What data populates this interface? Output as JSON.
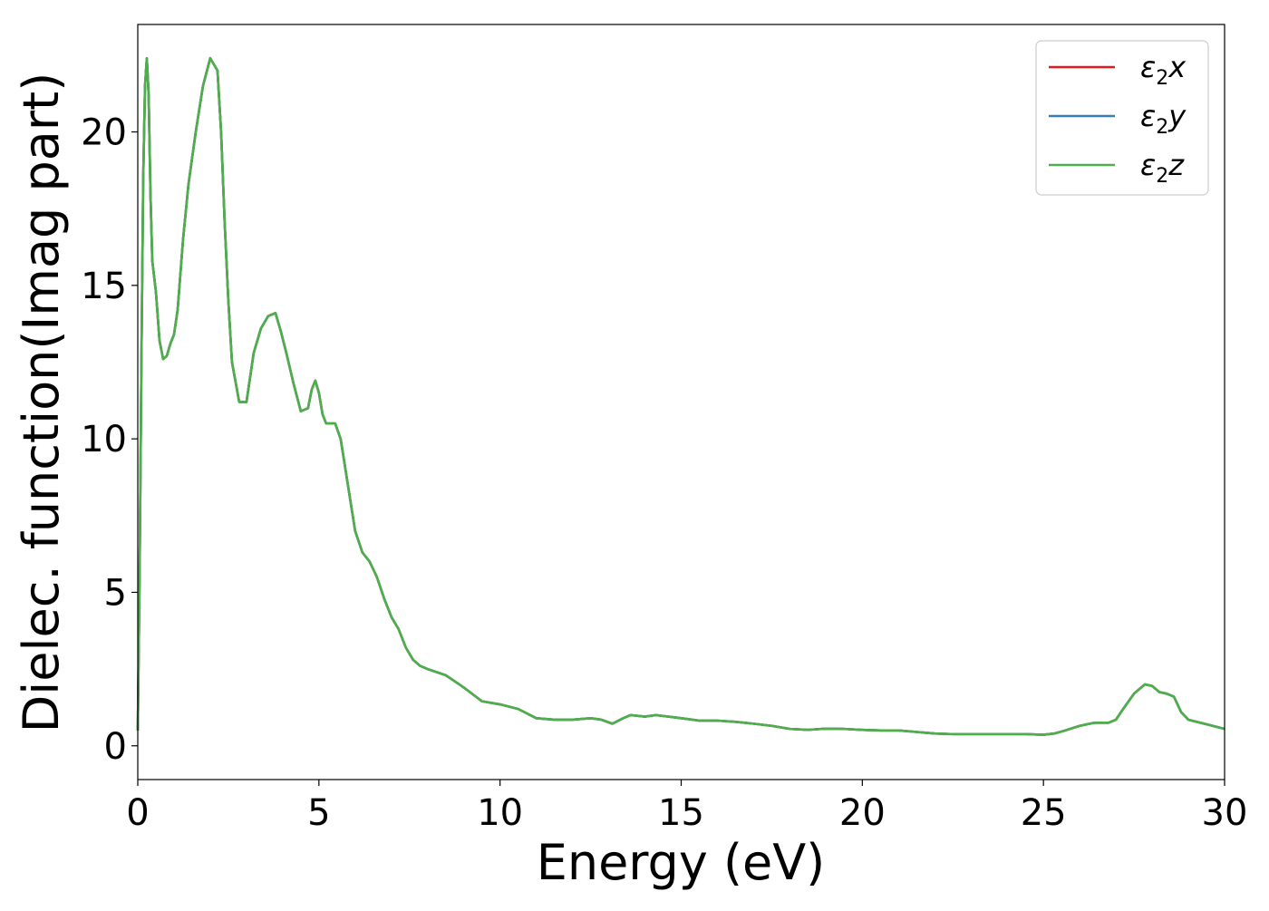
{
  "chart_data": {
    "type": "line",
    "xlabel": "Energy (eV)",
    "ylabel": "Dielec. function(Imag part)",
    "xlim": [
      0,
      30
    ],
    "ylim": [
      -1.1,
      23.5
    ],
    "xticks": [
      0,
      5,
      10,
      15,
      20,
      25,
      30
    ],
    "yticks": [
      0,
      5,
      10,
      15,
      20
    ],
    "grid": false,
    "legend_position": "top-right",
    "series": [
      {
        "name": "ε₂x",
        "legend": {
          "base": "ε",
          "sub": "2",
          "var": "x"
        },
        "color": "#e41a1c",
        "x": [
          0.0,
          0.05,
          0.1,
          0.15,
          0.2,
          0.25,
          0.3,
          0.35,
          0.4,
          0.5,
          0.6,
          0.7,
          0.8,
          0.9,
          1.0,
          1.1,
          1.25,
          1.4,
          1.6,
          1.8,
          2.0,
          2.2,
          2.3,
          2.4,
          2.5,
          2.6,
          2.8,
          3.0,
          3.1,
          3.2,
          3.4,
          3.6,
          3.8,
          3.95,
          4.1,
          4.3,
          4.5,
          4.7,
          4.8,
          4.9,
          5.0,
          5.1,
          5.2,
          5.3,
          5.45,
          5.6,
          5.8,
          6.0,
          6.2,
          6.4,
          6.6,
          6.8,
          7.0,
          7.2,
          7.4,
          7.6,
          7.8,
          8.0,
          8.5,
          9.0,
          9.5,
          10.0,
          10.5,
          11.0,
          11.5,
          12.0,
          12.5,
          12.8,
          13.1,
          13.4,
          13.6,
          14.0,
          14.3,
          15.0,
          15.5,
          16.0,
          16.5,
          17.0,
          17.5,
          18.0,
          18.5,
          19.0,
          19.5,
          20.0,
          20.5,
          21.0,
          21.5,
          22.0,
          22.5,
          23.0,
          23.5,
          24.0,
          24.5,
          25.0,
          25.3,
          25.6,
          26.0,
          26.4,
          26.8,
          27.0,
          27.2,
          27.5,
          27.8,
          28.0,
          28.2,
          28.4,
          28.6,
          28.8,
          29.0,
          29.5,
          30.0
        ],
        "y": [
          0.5,
          5.5,
          12.5,
          18.5,
          21.5,
          22.4,
          21.2,
          18.0,
          15.8,
          14.8,
          13.2,
          12.6,
          12.7,
          13.1,
          13.4,
          14.2,
          16.5,
          18.3,
          20.0,
          21.5,
          22.4,
          22.0,
          20.0,
          17.0,
          14.5,
          12.5,
          11.2,
          11.2,
          12.0,
          12.8,
          13.6,
          14.0,
          14.1,
          13.5,
          12.8,
          11.8,
          10.9,
          11.0,
          11.6,
          11.9,
          11.5,
          10.8,
          10.5,
          10.5,
          10.5,
          10.0,
          8.5,
          7.0,
          6.3,
          6.0,
          5.5,
          4.8,
          4.2,
          3.8,
          3.2,
          2.8,
          2.6,
          2.5,
          2.3,
          1.9,
          1.45,
          1.35,
          1.2,
          0.9,
          0.85,
          0.85,
          0.9,
          0.85,
          0.72,
          0.9,
          1.0,
          0.95,
          1.0,
          0.9,
          0.82,
          0.82,
          0.78,
          0.72,
          0.65,
          0.55,
          0.52,
          0.56,
          0.55,
          0.52,
          0.5,
          0.5,
          0.45,
          0.4,
          0.38,
          0.38,
          0.38,
          0.38,
          0.38,
          0.36,
          0.4,
          0.5,
          0.65,
          0.75,
          0.75,
          0.85,
          1.2,
          1.7,
          2.0,
          1.95,
          1.75,
          1.7,
          1.6,
          1.1,
          0.85,
          0.7,
          0.55
        ]
      },
      {
        "name": "ε₂y",
        "legend": {
          "base": "ε",
          "sub": "2",
          "var": "y"
        },
        "color": "#377eb8",
        "x": [
          0.0,
          0.05,
          0.1,
          0.15,
          0.2,
          0.25,
          0.3,
          0.35,
          0.4,
          0.5,
          0.6,
          0.7,
          0.8,
          0.9,
          1.0,
          1.1,
          1.25,
          1.4,
          1.6,
          1.8,
          2.0,
          2.2,
          2.3,
          2.4,
          2.5,
          2.6,
          2.8,
          3.0,
          3.1,
          3.2,
          3.4,
          3.6,
          3.8,
          3.95,
          4.1,
          4.3,
          4.5,
          4.7,
          4.8,
          4.9,
          5.0,
          5.1,
          5.2,
          5.3,
          5.45,
          5.6,
          5.8,
          6.0,
          6.2,
          6.4,
          6.6,
          6.8,
          7.0,
          7.2,
          7.4,
          7.6,
          7.8,
          8.0,
          8.5,
          9.0,
          9.5,
          10.0,
          10.5,
          11.0,
          11.5,
          12.0,
          12.5,
          12.8,
          13.1,
          13.4,
          13.6,
          14.0,
          14.3,
          15.0,
          15.5,
          16.0,
          16.5,
          17.0,
          17.5,
          18.0,
          18.5,
          19.0,
          19.5,
          20.0,
          20.5,
          21.0,
          21.5,
          22.0,
          22.5,
          23.0,
          23.5,
          24.0,
          24.5,
          25.0,
          25.3,
          25.6,
          26.0,
          26.4,
          26.8,
          27.0,
          27.2,
          27.5,
          27.8,
          28.0,
          28.2,
          28.4,
          28.6,
          28.8,
          29.0,
          29.5,
          30.0
        ],
        "y": [
          0.5,
          5.5,
          12.5,
          18.5,
          21.5,
          22.4,
          21.2,
          18.0,
          15.8,
          14.8,
          13.2,
          12.6,
          12.7,
          13.1,
          13.4,
          14.2,
          16.5,
          18.3,
          20.0,
          21.5,
          22.4,
          22.0,
          20.0,
          17.0,
          14.5,
          12.5,
          11.2,
          11.2,
          12.0,
          12.8,
          13.6,
          14.0,
          14.1,
          13.5,
          12.8,
          11.8,
          10.9,
          11.0,
          11.6,
          11.9,
          11.5,
          10.8,
          10.5,
          10.5,
          10.5,
          10.0,
          8.5,
          7.0,
          6.3,
          6.0,
          5.5,
          4.8,
          4.2,
          3.8,
          3.2,
          2.8,
          2.6,
          2.5,
          2.3,
          1.9,
          1.45,
          1.35,
          1.2,
          0.9,
          0.85,
          0.85,
          0.9,
          0.85,
          0.72,
          0.9,
          1.0,
          0.95,
          1.0,
          0.9,
          0.82,
          0.82,
          0.78,
          0.72,
          0.65,
          0.55,
          0.52,
          0.56,
          0.55,
          0.52,
          0.5,
          0.5,
          0.45,
          0.4,
          0.38,
          0.38,
          0.38,
          0.38,
          0.38,
          0.36,
          0.4,
          0.5,
          0.65,
          0.75,
          0.75,
          0.85,
          1.2,
          1.7,
          2.0,
          1.95,
          1.75,
          1.7,
          1.6,
          1.1,
          0.85,
          0.7,
          0.55
        ]
      },
      {
        "name": "ε₂z",
        "legend": {
          "base": "ε",
          "sub": "2",
          "var": "z"
        },
        "color": "#4daf4a",
        "x": [
          0.0,
          0.05,
          0.1,
          0.15,
          0.2,
          0.25,
          0.3,
          0.35,
          0.4,
          0.5,
          0.6,
          0.7,
          0.8,
          0.9,
          1.0,
          1.1,
          1.25,
          1.4,
          1.6,
          1.8,
          2.0,
          2.2,
          2.3,
          2.4,
          2.5,
          2.6,
          2.8,
          3.0,
          3.1,
          3.2,
          3.4,
          3.6,
          3.8,
          3.95,
          4.1,
          4.3,
          4.5,
          4.7,
          4.8,
          4.9,
          5.0,
          5.1,
          5.2,
          5.3,
          5.45,
          5.6,
          5.8,
          6.0,
          6.2,
          6.4,
          6.6,
          6.8,
          7.0,
          7.2,
          7.4,
          7.6,
          7.8,
          8.0,
          8.5,
          9.0,
          9.5,
          10.0,
          10.5,
          11.0,
          11.5,
          12.0,
          12.5,
          12.8,
          13.1,
          13.4,
          13.6,
          14.0,
          14.3,
          15.0,
          15.5,
          16.0,
          16.5,
          17.0,
          17.5,
          18.0,
          18.5,
          19.0,
          19.5,
          20.0,
          20.5,
          21.0,
          21.5,
          22.0,
          22.5,
          23.0,
          23.5,
          24.0,
          24.5,
          25.0,
          25.3,
          25.6,
          26.0,
          26.4,
          26.8,
          27.0,
          27.2,
          27.5,
          27.8,
          28.0,
          28.2,
          28.4,
          28.6,
          28.8,
          29.0,
          29.5,
          30.0
        ],
        "y": [
          0.5,
          5.5,
          12.5,
          18.5,
          21.5,
          22.4,
          21.2,
          18.0,
          15.8,
          14.8,
          13.2,
          12.6,
          12.7,
          13.1,
          13.4,
          14.2,
          16.5,
          18.3,
          20.0,
          21.5,
          22.4,
          22.0,
          20.0,
          17.0,
          14.5,
          12.5,
          11.2,
          11.2,
          12.0,
          12.8,
          13.6,
          14.0,
          14.1,
          13.5,
          12.8,
          11.8,
          10.9,
          11.0,
          11.6,
          11.9,
          11.5,
          10.8,
          10.5,
          10.5,
          10.5,
          10.0,
          8.5,
          7.0,
          6.3,
          6.0,
          5.5,
          4.8,
          4.2,
          3.8,
          3.2,
          2.8,
          2.6,
          2.5,
          2.3,
          1.9,
          1.45,
          1.35,
          1.2,
          0.9,
          0.85,
          0.85,
          0.9,
          0.85,
          0.72,
          0.9,
          1.0,
          0.95,
          1.0,
          0.9,
          0.82,
          0.82,
          0.78,
          0.72,
          0.65,
          0.55,
          0.52,
          0.56,
          0.55,
          0.52,
          0.5,
          0.5,
          0.45,
          0.4,
          0.38,
          0.38,
          0.38,
          0.38,
          0.38,
          0.36,
          0.4,
          0.5,
          0.65,
          0.75,
          0.75,
          0.85,
          1.2,
          1.7,
          2.0,
          1.95,
          1.75,
          1.7,
          1.6,
          1.1,
          0.85,
          0.7,
          0.55
        ]
      }
    ]
  }
}
